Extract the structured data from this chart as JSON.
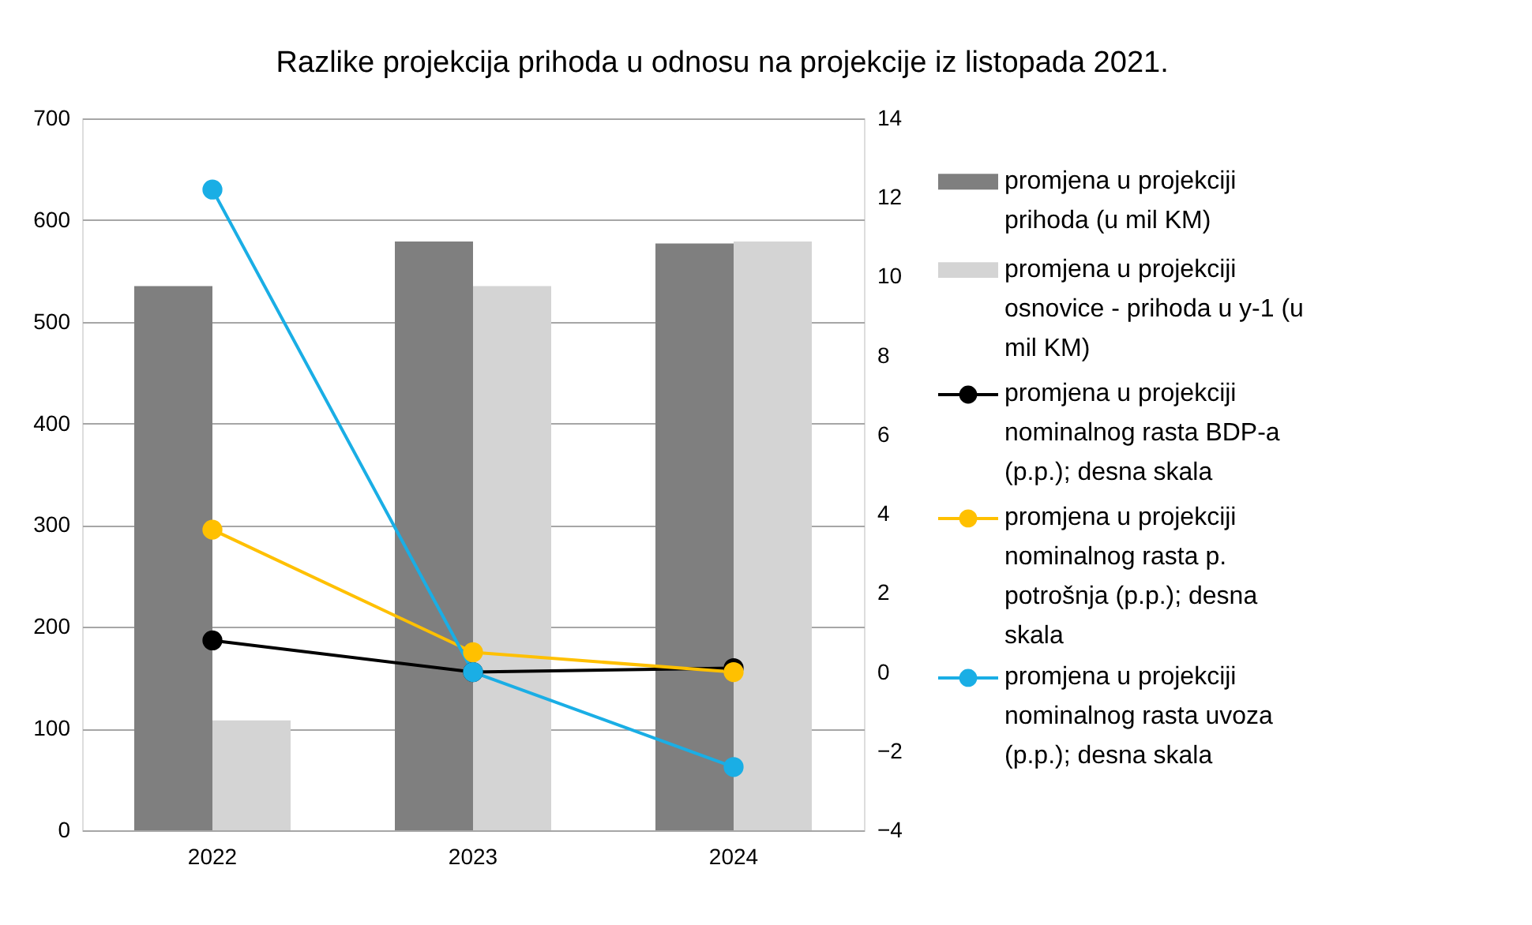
{
  "chart_data": {
    "type": "bar",
    "title": "Razlike projekcija prihoda u odnosu na projekcije iz listopada 2021.",
    "categories": [
      "2022",
      "2023",
      "2024"
    ],
    "series": [
      {
        "name": "promjena u projekciji prihoda (u mil KM)",
        "color": "#7f7f7f",
        "values": [
          535,
          579,
          577
        ]
      },
      {
        "name": "promjena u projekciji osnovice - prihoda u y-1 (u mil KM)",
        "color": "#d4d4d4",
        "values": [
          108,
          535,
          579
        ]
      },
      {
        "name": "promjena u projekciji nominalnog rasta BDP-a (p.p.); desna skala",
        "type": "line",
        "axis": "y2",
        "color": "#000000",
        "values": [
          0.8,
          0.0,
          0.1
        ]
      },
      {
        "name": "promjena u projekciji nominalnog  rasta p. potrošnja (p.p.); desna skala",
        "type": "line",
        "axis": "y2",
        "color": "#ffc000",
        "values": [
          3.6,
          0.5,
          0.0
        ]
      },
      {
        "name": "promjena u projekciji nominalnog rasta uvoza (p.p.); desna skala",
        "type": "line",
        "axis": "y2",
        "color": "#1aaee5",
        "values": [
          12.2,
          0.0,
          -2.4
        ]
      }
    ],
    "ylim": [
      0,
      700
    ],
    "yticks": [
      0,
      100,
      200,
      300,
      400,
      500,
      600,
      700
    ],
    "y2lim": [
      -4,
      14
    ],
    "y2ticks": [
      -4,
      -2,
      0,
      2,
      4,
      6,
      8,
      10,
      12,
      14
    ],
    "grid": "y",
    "legend": "right",
    "marker": "circle",
    "line_style": "solid"
  }
}
